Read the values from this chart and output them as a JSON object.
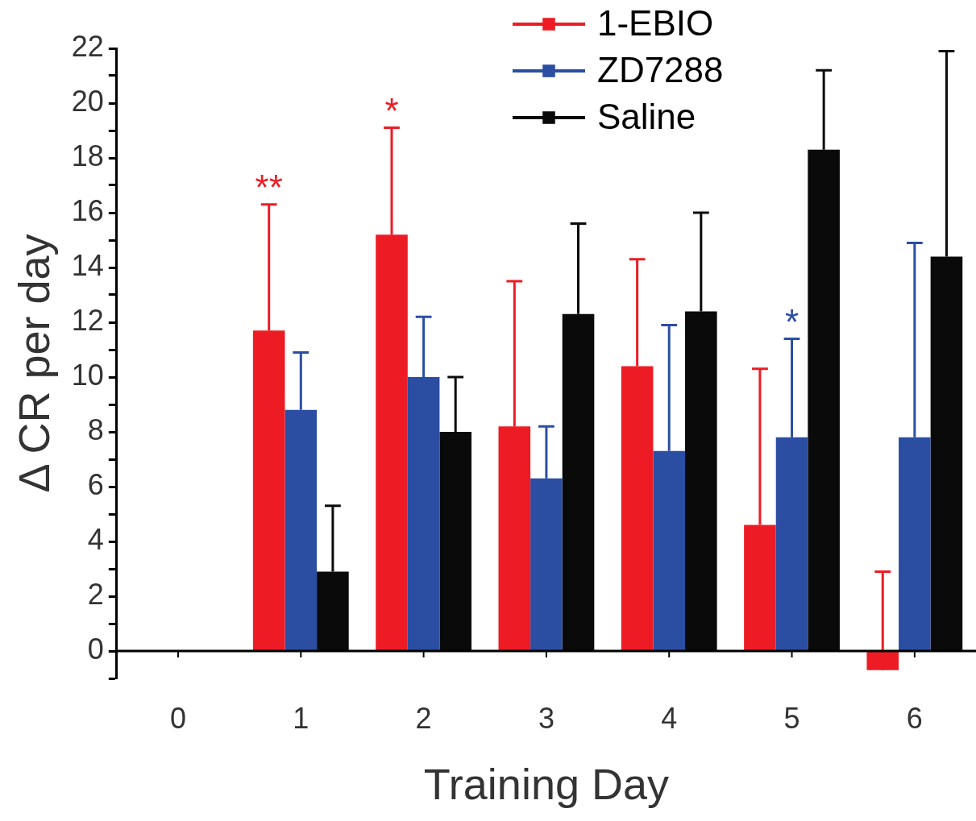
{
  "chart_data": {
    "type": "bar",
    "xlabel": "Training Day",
    "ylabel": "Δ CR per day",
    "categories": [
      "0",
      "1",
      "2",
      "3",
      "4",
      "5",
      "6"
    ],
    "series": [
      {
        "name": "1-EBIO",
        "color": "#ed1c24",
        "values": [
          null,
          11.7,
          15.2,
          8.2,
          10.4,
          4.6,
          -0.7
        ],
        "errors": [
          null,
          [
            11.7,
            16.3
          ],
          [
            15.2,
            19.1
          ],
          [
            8.2,
            13.5
          ],
          [
            10.4,
            14.3
          ],
          [
            4.6,
            10.3
          ],
          [
            -0.7,
            2.9
          ]
        ]
      },
      {
        "name": "ZD7288",
        "color": "#2b4ea2",
        "values": [
          null,
          8.8,
          10.0,
          6.3,
          7.3,
          7.8,
          7.8
        ],
        "errors": [
          null,
          [
            8.8,
            10.9
          ],
          [
            10.0,
            12.2
          ],
          [
            6.3,
            8.2
          ],
          [
            7.3,
            11.9
          ],
          [
            7.8,
            11.4
          ],
          [
            7.8,
            14.9
          ]
        ]
      },
      {
        "name": "Saline",
        "color": "#0a0a0a",
        "values": [
          null,
          2.9,
          8.0,
          12.3,
          12.4,
          18.3,
          14.4
        ],
        "errors": [
          null,
          [
            2.9,
            5.3
          ],
          [
            8.0,
            10.0
          ],
          [
            12.3,
            15.6
          ],
          [
            12.4,
            16.0
          ],
          [
            18.3,
            21.2
          ],
          [
            14.4,
            21.9
          ]
        ]
      }
    ],
    "ylim": [
      -1,
      22
    ],
    "yticks": [
      {
        "value": -1,
        "label": null
      },
      0,
      {
        "value": 1,
        "label": null
      },
      2,
      {
        "value": 3,
        "label": null
      },
      4,
      {
        "value": 5,
        "label": null
      },
      6,
      {
        "value": 7,
        "label": null
      },
      8,
      {
        "value": 9,
        "label": null
      },
      10,
      {
        "value": 11,
        "label": null
      },
      12,
      {
        "value": 13,
        "label": null
      },
      14,
      {
        "value": 15,
        "label": null
      },
      16,
      {
        "value": 17,
        "label": null
      },
      18,
      {
        "value": 19,
        "label": null
      },
      20,
      {
        "value": 21,
        "label": null
      },
      22
    ],
    "annotations": [
      "**",
      "*",
      "*"
    ],
    "legend": "top right",
    "marker": "square"
  }
}
